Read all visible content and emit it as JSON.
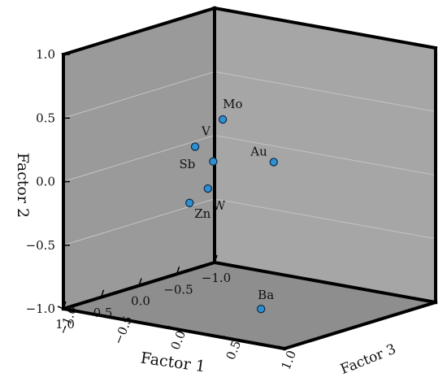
{
  "chart_data": {
    "type": "scatter",
    "projection": "3d",
    "xlabel": "Factor 1",
    "ylabel": "Factor 2",
    "zlabel": "Factor 3",
    "xticks": [
      "−1.0",
      "−0.5",
      "0.0",
      "0.5",
      "1.0"
    ],
    "yticks": [
      "1.0",
      "0.5",
      "0.0",
      "−0.5",
      "−1.0"
    ],
    "zticks": [
      "1.0",
      "0.5",
      "0.0",
      "−0.5",
      "−1.0"
    ],
    "xlim": [
      -1,
      1
    ],
    "ylim": [
      -1,
      1
    ],
    "zlim": [
      -1,
      1
    ],
    "grid": true,
    "colors": {
      "point_fill": "#2f8fd1",
      "left_wall": "#9a9a9a",
      "back_wall": "#a6a6a6",
      "floor": "#8e8e8e",
      "edges": "#000000"
    },
    "points": [
      {
        "label": "Mo",
        "x": 0.5,
        "y": 0.57,
        "z": 0.1
      },
      {
        "label": "V",
        "x": 0.72,
        "y": 0.38,
        "z": 0.0
      },
      {
        "label": "Sb",
        "x": 0.48,
        "y": 0.22,
        "z": 0.0
      },
      {
        "label": "W",
        "x": 0.55,
        "y": 0.02,
        "z": 0.0
      },
      {
        "label": "Zn",
        "x": 0.72,
        "y": -0.07,
        "z": -0.05
      },
      {
        "label": "Au",
        "x": -0.32,
        "y": 0.07,
        "z": 0.0
      },
      {
        "label": "Ba",
        "x": 0.14,
        "y": -0.97,
        "z": 0.2
      }
    ]
  }
}
